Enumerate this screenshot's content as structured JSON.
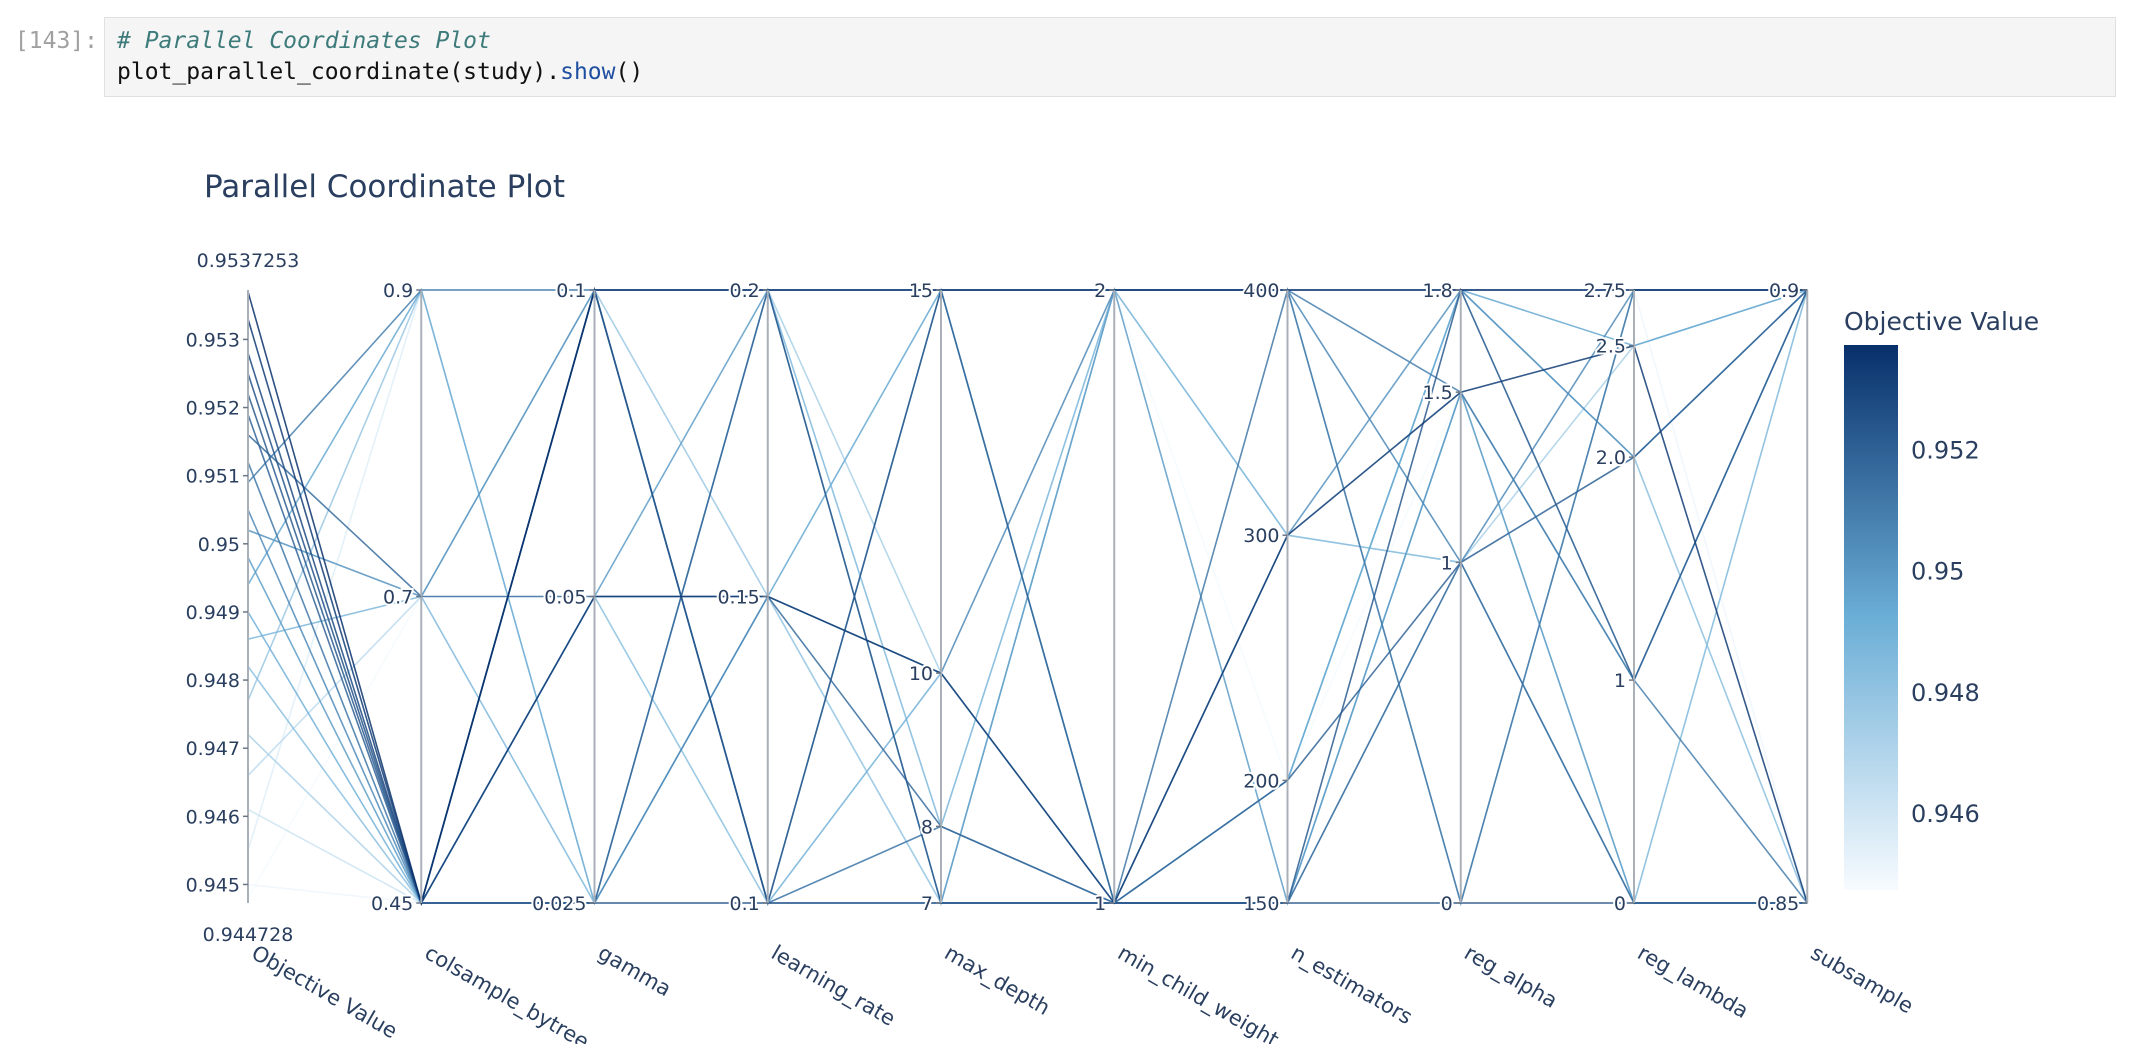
{
  "notebook": {
    "prompt": "[143]:",
    "code_comment": "# Parallel Coordinates Plot",
    "code_call_prefix": "plot_parallel_coordinate(study).",
    "code_call_method": "show",
    "code_call_suffix": "()"
  },
  "chart_data": {
    "type": "parallel_coordinates",
    "title": "Parallel Coordinate Plot",
    "colorbar": {
      "title": "Objective Value",
      "range": [
        0.944728,
        0.9537253
      ],
      "ticks": [
        "0.946",
        "0.948",
        "0.95",
        "0.952"
      ],
      "tick_values": [
        0.946,
        0.948,
        0.95,
        0.952
      ],
      "colors": [
        "#f7fbff",
        "#6baed6",
        "#08306b"
      ]
    },
    "axes": [
      {
        "name": "Objective Value",
        "range": [
          0.944728,
          0.9537253
        ],
        "ticks": [
          {
            "v": 0.945,
            "t": "0.945"
          },
          {
            "v": 0.946,
            "t": "0.946"
          },
          {
            "v": 0.947,
            "t": "0.947"
          },
          {
            "v": 0.948,
            "t": "0.948"
          },
          {
            "v": 0.949,
            "t": "0.949"
          },
          {
            "v": 0.95,
            "t": "0.95"
          },
          {
            "v": 0.951,
            "t": "0.951"
          },
          {
            "v": 0.952,
            "t": "0.952"
          },
          {
            "v": 0.953,
            "t": "0.953"
          }
        ],
        "min_label": "0.944728",
        "max_label": "0.9537253"
      },
      {
        "name": "colsample_bytree",
        "ticks": [
          {
            "v": 0.45,
            "t": "0.45"
          },
          {
            "v": 0.7,
            "t": "0.7"
          },
          {
            "v": 0.9,
            "t": "0.9"
          }
        ]
      },
      {
        "name": "gamma",
        "ticks": [
          {
            "v": 0.025,
            "t": "0.025"
          },
          {
            "v": 0.05,
            "t": "0.05"
          },
          {
            "v": 0.1,
            "t": "0.1"
          }
        ]
      },
      {
        "name": "learning_rate",
        "ticks": [
          {
            "v": 0.1,
            "t": "0.1"
          },
          {
            "v": 0.15,
            "t": "0.15"
          },
          {
            "v": 0.2,
            "t": "0.2"
          }
        ]
      },
      {
        "name": "max_depth",
        "ticks": [
          {
            "v": 7,
            "t": "7"
          },
          {
            "v": 8,
            "t": "8"
          },
          {
            "v": 10,
            "t": "10"
          },
          {
            "v": 15,
            "t": "15"
          }
        ]
      },
      {
        "name": "min_child_weight",
        "ticks": [
          {
            "v": 1,
            "t": "1"
          },
          {
            "v": 2,
            "t": "2"
          }
        ]
      },
      {
        "name": "n_estimators",
        "ticks": [
          {
            "v": 150,
            "t": "150"
          },
          {
            "v": 200,
            "t": "200"
          },
          {
            "v": 300,
            "t": "300"
          },
          {
            "v": 400,
            "t": "400"
          }
        ]
      },
      {
        "name": "reg_alpha",
        "ticks": [
          {
            "v": 0,
            "t": "0"
          },
          {
            "v": 1,
            "t": "1"
          },
          {
            "v": 1.5,
            "t": "1.5"
          },
          {
            "v": 1.8,
            "t": "1.8"
          }
        ]
      },
      {
        "name": "reg_lambda",
        "ticks": [
          {
            "v": 0,
            "t": "0"
          },
          {
            "v": 1,
            "t": "1"
          },
          {
            "v": 2.0,
            "t": "2.0"
          },
          {
            "v": 2.5,
            "t": "2.5"
          },
          {
            "v": 2.75,
            "t": "2.75"
          }
        ]
      },
      {
        "name": "subsample",
        "ticks": [
          {
            "v": 0.85,
            "t": "0.85"
          },
          {
            "v": 0.9,
            "t": "0.9"
          }
        ]
      }
    ],
    "trials": [
      {
        "objective": 0.9537,
        "values": [
          0.45,
          0.1,
          0.2,
          15,
          2,
          400,
          1.8,
          2.75,
          0.9
        ]
      },
      {
        "objective": 0.9533,
        "values": [
          0.45,
          0.05,
          0.15,
          10,
          1,
          300,
          1.5,
          2.5,
          0.85
        ]
      },
      {
        "objective": 0.9528,
        "values": [
          0.45,
          0.025,
          0.1,
          7,
          1,
          150,
          0,
          0,
          0.85
        ]
      },
      {
        "objective": 0.9525,
        "values": [
          0.45,
          0.1,
          0.1,
          15,
          2,
          400,
          1.8,
          2.75,
          0.9
        ]
      },
      {
        "objective": 0.9522,
        "values": [
          0.45,
          0.1,
          0.2,
          7,
          1,
          150,
          1.8,
          1,
          0.9
        ]
      },
      {
        "objective": 0.9519,
        "values": [
          0.45,
          0.025,
          0.2,
          15,
          1,
          200,
          1,
          2.0,
          0.9
        ]
      },
      {
        "objective": 0.9516,
        "values": [
          0.7,
          0.05,
          0.15,
          8,
          1,
          150,
          1,
          0,
          0.85
        ]
      },
      {
        "objective": 0.9512,
        "values": [
          0.45,
          0.1,
          0.1,
          8,
          1,
          400,
          0,
          2.75,
          0.9
        ]
      },
      {
        "objective": 0.9509,
        "values": [
          0.9,
          0.1,
          0.2,
          15,
          2,
          400,
          1.5,
          1,
          0.85
        ]
      },
      {
        "objective": 0.9505,
        "values": [
          0.45,
          0.025,
          0.15,
          10,
          2,
          400,
          1,
          2.75,
          0.9
        ]
      },
      {
        "objective": 0.9502,
        "values": [
          0.7,
          0.1,
          0.1,
          7,
          1,
          300,
          1.8,
          2.0,
          0.9
        ]
      },
      {
        "objective": 0.9498,
        "values": [
          0.45,
          0.05,
          0.2,
          7,
          2,
          150,
          1.5,
          0,
          0.85
        ]
      },
      {
        "objective": 0.9494,
        "values": [
          0.9,
          0.025,
          0.15,
          15,
          1,
          200,
          1.8,
          2.5,
          0.9
        ]
      },
      {
        "objective": 0.949,
        "values": [
          0.45,
          0.1,
          0.1,
          10,
          1,
          150,
          1.5,
          1,
          0.9
        ]
      },
      {
        "objective": 0.9486,
        "values": [
          0.7,
          0.025,
          0.2,
          8,
          2,
          300,
          1,
          0,
          0.9
        ]
      },
      {
        "objective": 0.9482,
        "values": [
          0.45,
          0.05,
          0.1,
          15,
          1,
          200,
          1.8,
          2.0,
          0.85
        ]
      },
      {
        "objective": 0.9477,
        "values": [
          0.9,
          0.1,
          0.15,
          7,
          2,
          400,
          0,
          2.75,
          0.9
        ]
      },
      {
        "objective": 0.9472,
        "values": [
          0.45,
          0.025,
          0.2,
          10,
          1,
          150,
          1,
          2.5,
          0.9
        ]
      },
      {
        "objective": 0.9466,
        "values": [
          0.7,
          0.1,
          0.1,
          15,
          2,
          300,
          1.5,
          0,
          0.85
        ]
      },
      {
        "objective": 0.9461,
        "values": [
          0.45,
          0.05,
          0.15,
          7,
          1,
          200,
          1.8,
          1,
          0.9
        ]
      },
      {
        "objective": 0.9455,
        "values": [
          0.9,
          0.025,
          0.1,
          8,
          2,
          400,
          1,
          2.0,
          0.9
        ]
      },
      {
        "objective": 0.945,
        "values": [
          0.45,
          0.1,
          0.2,
          7,
          1,
          150,
          0,
          2.75,
          0.85
        ]
      },
      {
        "objective": 0.9448,
        "values": [
          0.7,
          0.05,
          0.15,
          15,
          2,
          200,
          1.5,
          2.5,
          0.9
        ]
      }
    ]
  }
}
